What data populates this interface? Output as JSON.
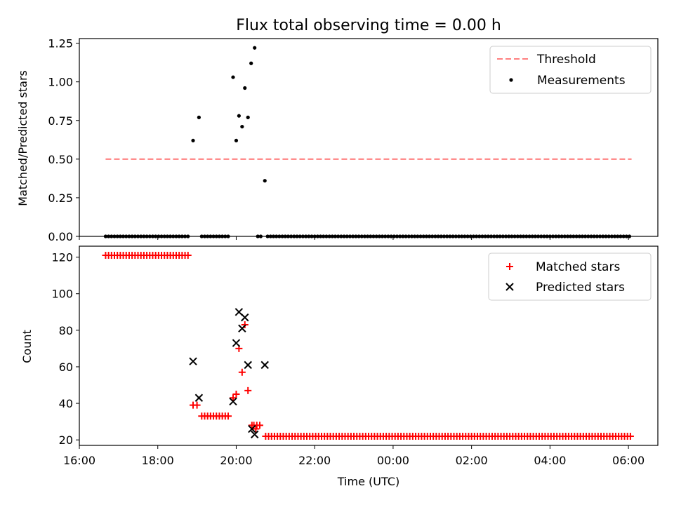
{
  "chart_data": [
    {
      "type": "scatter",
      "title": "Flux total observing time = 0.00 h",
      "xlabel": "",
      "ylabel": "Matched/Predicted stars",
      "xlim_hours": [
        16.0,
        30.75
      ],
      "ylim": [
        0,
        1.28
      ],
      "yticks": [
        "0.00",
        "0.25",
        "0.50",
        "0.75",
        "1.00",
        "1.25"
      ],
      "legend_position": "top-right",
      "series": [
        {
          "name": "Threshold",
          "style": "dashed-line",
          "color": "#ff7f7f",
          "x_hours": [
            16.67,
            30.08
          ],
          "y": [
            0.5,
            0.5
          ]
        },
        {
          "name": "Measurements",
          "style": "dot",
          "color": "#000000",
          "points": [
            [
              18.9,
              0.62
            ],
            [
              19.05,
              0.77
            ],
            [
              19.92,
              1.03
            ],
            [
              20.0,
              0.62
            ],
            [
              20.07,
              0.78
            ],
            [
              20.15,
              0.71
            ],
            [
              20.22,
              0.96
            ],
            [
              20.3,
              0.77
            ],
            [
              20.38,
              1.12
            ],
            [
              20.47,
              1.22
            ],
            [
              20.73,
              0.36
            ]
          ],
          "zero_ranges_hours": [
            [
              16.67,
              18.82
            ],
            [
              19.12,
              19.83
            ],
            [
              20.55,
              20.65
            ],
            [
              20.8,
              30.08
            ]
          ],
          "zero_step_hours": 0.075
        }
      ]
    },
    {
      "type": "scatter",
      "title": "",
      "xlabel": "Time (UTC)",
      "ylabel": "Count",
      "xlim_hours": [
        16.0,
        30.75
      ],
      "ylim": [
        17,
        126
      ],
      "yticks": [
        "20",
        "40",
        "60",
        "80",
        "100",
        "120"
      ],
      "xticks": [
        "16:00",
        "18:00",
        "20:00",
        "22:00",
        "00:00",
        "02:00",
        "04:00",
        "06:00"
      ],
      "legend_position": "top-right",
      "series": [
        {
          "name": "Matched stars",
          "marker": "plus",
          "color": "#ff0000",
          "ranges": [
            {
              "from": 16.67,
              "to": 18.82,
              "value": 121
            },
            {
              "from": 19.12,
              "to": 19.83,
              "value": 33
            },
            {
              "from": 20.45,
              "to": 20.65,
              "value": 28
            },
            {
              "from": 20.75,
              "to": 30.08,
              "value": 22
            }
          ],
          "step_hours": 0.075,
          "points": [
            [
              18.9,
              39
            ],
            [
              19.0,
              39
            ],
            [
              19.92,
              43
            ],
            [
              20.0,
              45
            ],
            [
              20.07,
              70
            ],
            [
              20.15,
              57
            ],
            [
              20.22,
              83
            ],
            [
              20.3,
              47
            ],
            [
              20.4,
              28
            ],
            [
              20.5,
              26
            ]
          ]
        },
        {
          "name": "Predicted stars",
          "marker": "x",
          "color": "#000000",
          "points": [
            [
              18.9,
              63
            ],
            [
              19.05,
              43
            ],
            [
              19.92,
              41
            ],
            [
              20.0,
              73
            ],
            [
              20.07,
              90
            ],
            [
              20.15,
              81
            ],
            [
              20.22,
              87
            ],
            [
              20.3,
              61
            ],
            [
              20.4,
              26
            ],
            [
              20.47,
              23
            ],
            [
              20.73,
              61
            ]
          ]
        }
      ]
    }
  ]
}
